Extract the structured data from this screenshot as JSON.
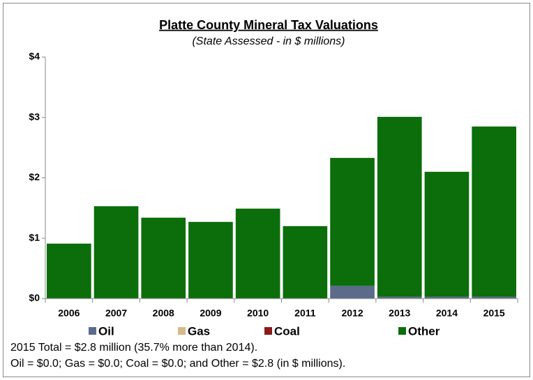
{
  "chart_data": {
    "type": "stacked_bar",
    "title": "Platte County Mineral Tax Valuations",
    "subtitle": "(State Assessed - in $ millions)",
    "categories": [
      "2006",
      "2007",
      "2008",
      "2009",
      "2010",
      "2011",
      "2012",
      "2013",
      "2014",
      "2015"
    ],
    "series": [
      {
        "name": "Oil",
        "color": "#5b6b8a",
        "values": [
          0,
          0,
          0,
          0,
          0,
          0,
          0.21,
          0.03,
          0.03,
          0.03
        ]
      },
      {
        "name": "Gas",
        "color": "#d8b98a",
        "values": [
          0,
          0,
          0,
          0,
          0,
          0,
          0,
          0,
          0,
          0
        ]
      },
      {
        "name": "Coal",
        "color": "#8b1a1a",
        "values": [
          0,
          0,
          0,
          0,
          0,
          0,
          0,
          0,
          0,
          0
        ]
      },
      {
        "name": "Other",
        "color": "#0b6e0b",
        "values": [
          0.91,
          1.53,
          1.34,
          1.27,
          1.49,
          1.2,
          2.12,
          2.98,
          2.07,
          2.82
        ]
      }
    ],
    "ylim": [
      0,
      4
    ],
    "yticks": [
      {
        "value": 0,
        "label": "$0"
      },
      {
        "value": 1,
        "label": "$1"
      },
      {
        "value": 2,
        "label": "$2"
      },
      {
        "value": 3,
        "label": "$3"
      },
      {
        "value": 4,
        "label": "$4"
      }
    ],
    "annotations": [
      "2015 Total = $2.8 million (35.7% more than 2014).",
      "Oil = $0.0; Gas = $0.0; Coal = $0.0; and Other = $2.8 (in $ millions)."
    ]
  }
}
